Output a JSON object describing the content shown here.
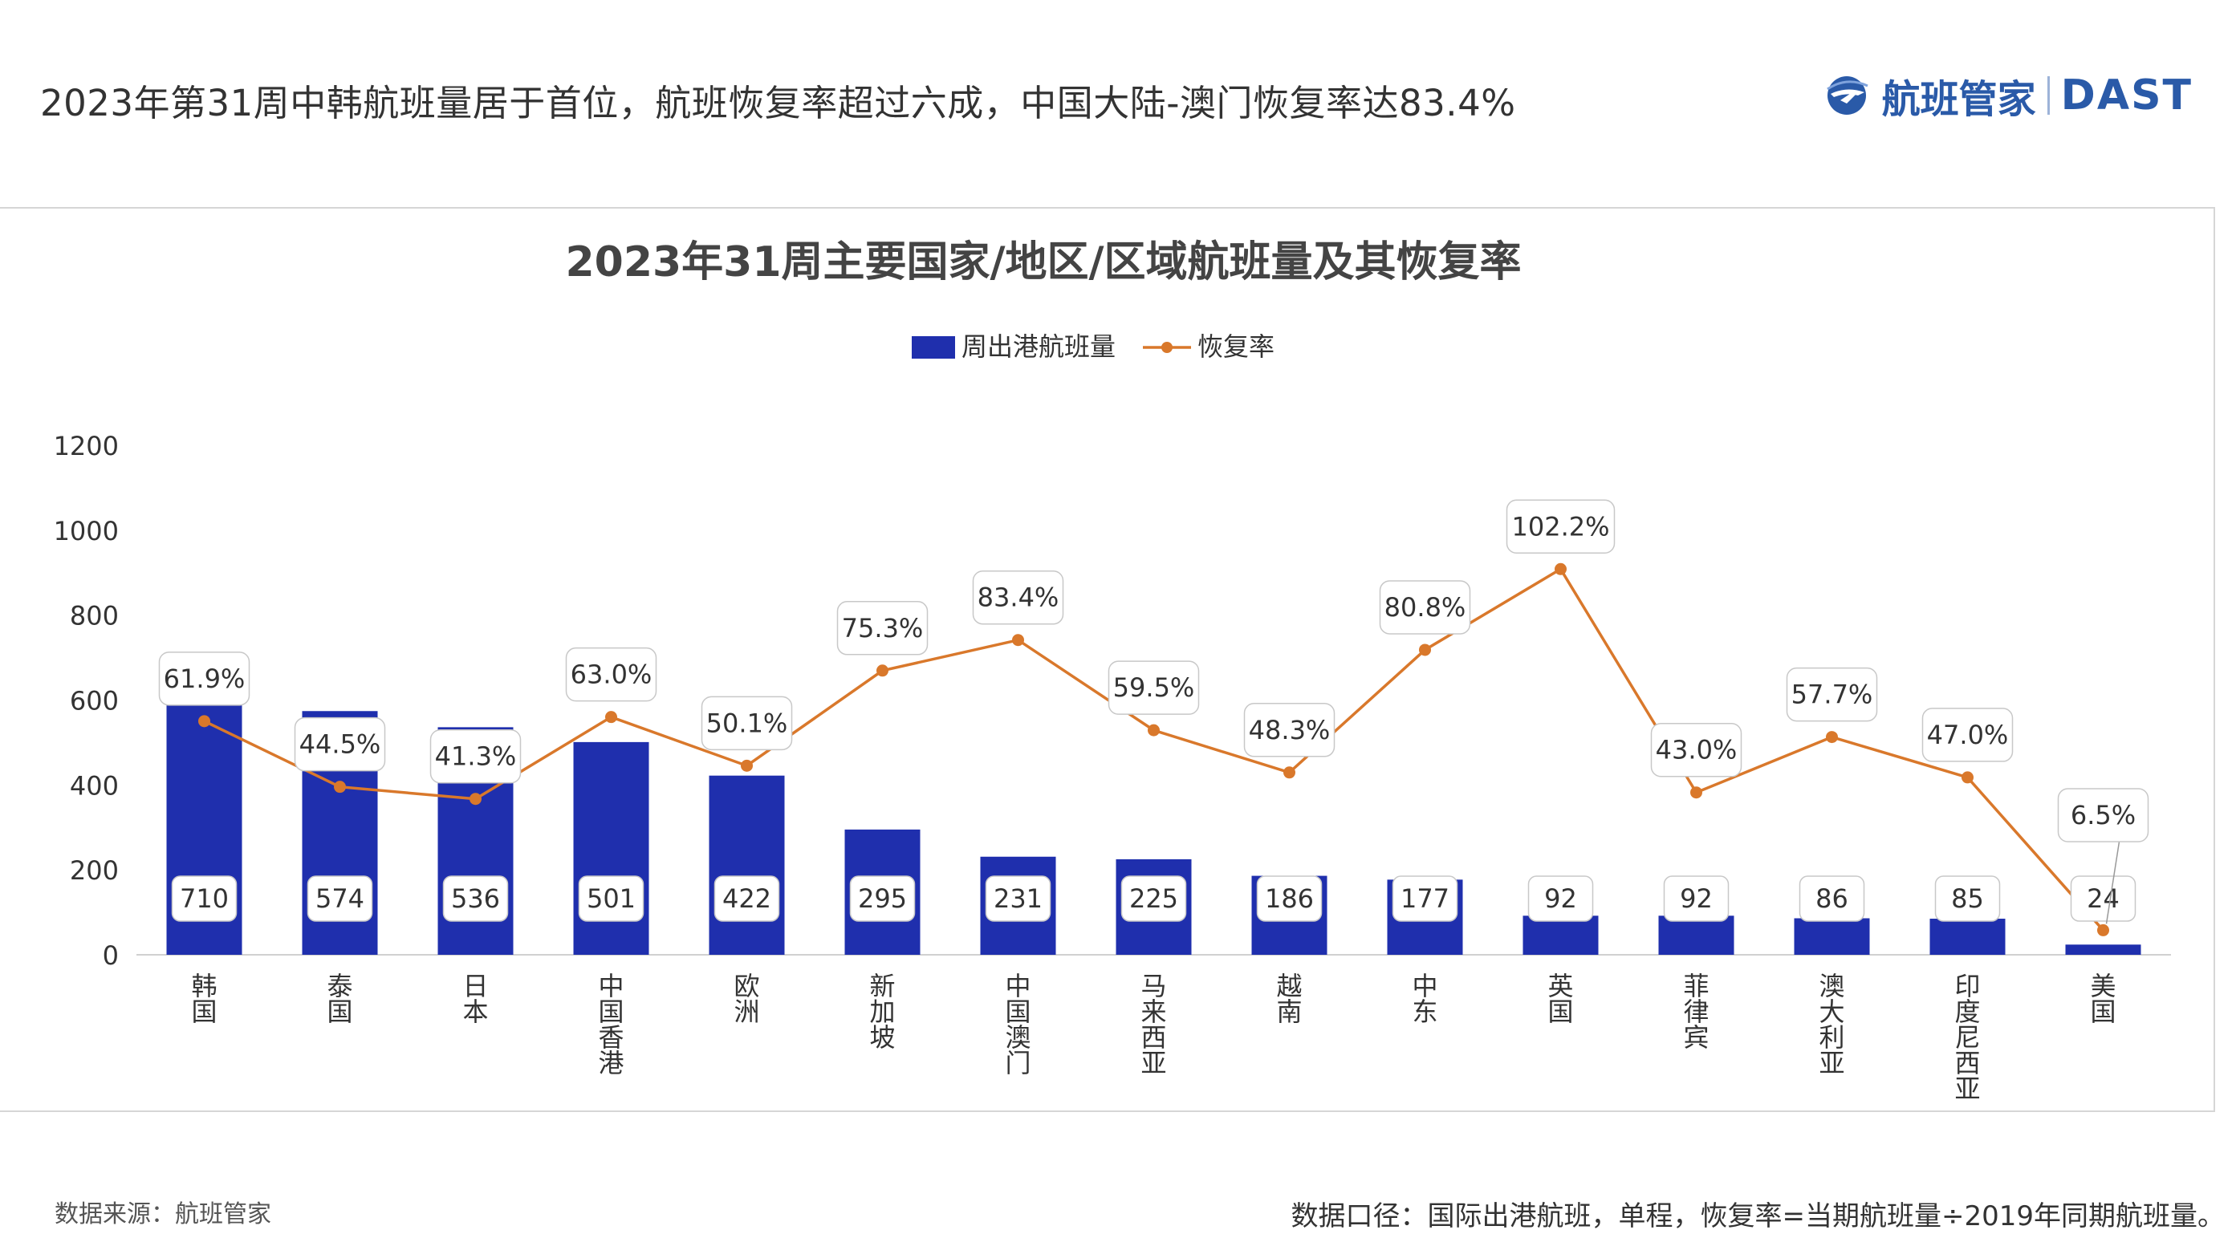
{
  "headline": "2023年第31周中韩航班量居于首位，航班恢复率超过六成，中国大陆-澳门恢复率达83.4%",
  "logo": {
    "name": "航班管家",
    "en": "DAST",
    "icon": "plane-globe-icon",
    "color": "#2a5aa8"
  },
  "footer": {
    "source": "数据来源：航班管家",
    "note": "数据口径：国际出港航班，单程，恢复率=当期航班量÷2019年同期航班量。"
  },
  "chart_data": {
    "type": "bar+line",
    "title": "2023年31周主要国家/地区/区域航班量及其恢复率",
    "legend_position": "top",
    "categories": [
      "韩国",
      "泰国",
      "日本",
      "中国香港",
      "欧洲",
      "新加坡",
      "中国澳门",
      "马来西亚",
      "越南",
      "中东",
      "英国",
      "菲律宾",
      "澳大利亚",
      "印度尼西亚",
      "美国"
    ],
    "bar_series": {
      "name": "周出港航班量",
      "color": "#1f2fad",
      "values": [
        710,
        574,
        536,
        501,
        422,
        295,
        231,
        225,
        186,
        177,
        92,
        92,
        86,
        85,
        24
      ],
      "labels": [
        "710",
        "574",
        "536",
        "501",
        "422",
        "295",
        "231",
        "225",
        "186",
        "177",
        "92",
        "92",
        "86",
        "85",
        "24"
      ]
    },
    "line_series": {
      "name": "恢复率",
      "color": "#d9782b",
      "values": [
        61.9,
        44.5,
        41.3,
        63.0,
        50.1,
        75.3,
        83.4,
        59.5,
        48.3,
        80.8,
        102.2,
        43.0,
        57.7,
        47.0,
        6.5
      ],
      "labels": [
        "61.9%",
        "44.5%",
        "41.3%",
        "63.0%",
        "50.1%",
        "75.3%",
        "83.4%",
        "59.5%",
        "48.3%",
        "80.8%",
        "102.2%",
        "43.0%",
        "57.7%",
        "47.0%",
        "6.5%"
      ]
    },
    "y_axis": {
      "min": 0,
      "max": 1200,
      "ticks": [
        "0",
        "200",
        "400",
        "600",
        "800",
        "1000",
        "1200"
      ]
    },
    "grid": false
  }
}
